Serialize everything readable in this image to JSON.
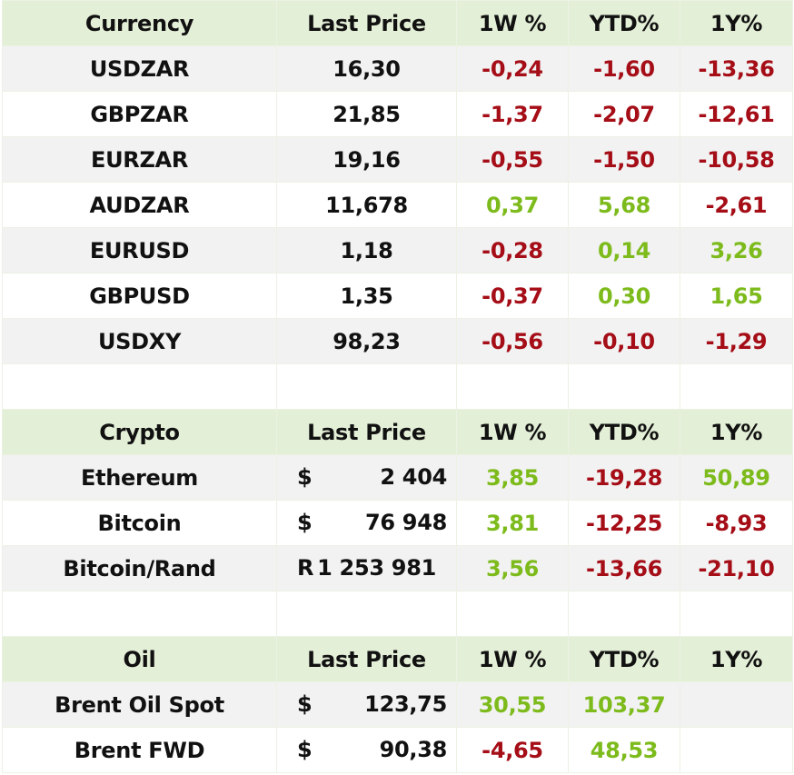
{
  "sections": [
    {
      "header": [
        "Currency",
        "Last Price",
        "1W %",
        "YTD%",
        "1Y%"
      ],
      "rows": [
        {
          "name": "USDZAR",
          "price": "16,30",
          "w": "-0,24",
          "ytd": "-1,60",
          "y": "-13,36"
        },
        {
          "name": "GBPZAR",
          "price": "21,85",
          "w": "-1,37",
          "ytd": "-2,07",
          "y": "-12,61"
        },
        {
          "name": "EURZAR",
          "price": "19,16",
          "w": "-0,55",
          "ytd": "-1,50",
          "y": "-10,58"
        },
        {
          "name": "AUDZAR",
          "price": "11,678",
          "w": "0,37",
          "ytd": "5,68",
          "y": "-2,61"
        },
        {
          "name": "EURUSD",
          "price": "1,18",
          "w": "-0,28",
          "ytd": "0,14",
          "y": "3,26"
        },
        {
          "name": "GBPUSD",
          "price": "1,35",
          "w": "-0,37",
          "ytd": "0,30",
          "y": "1,65"
        },
        {
          "name": "USDXY",
          "price": "98,23",
          "w": "-0,56",
          "ytd": "-0,10",
          "y": "-1,29"
        }
      ]
    },
    {
      "header": [
        "Crypto",
        "Last Price",
        "1W %",
        "YTD%",
        "1Y%"
      ],
      "rows": [
        {
          "name": "Ethereum",
          "currency": "$",
          "price": "2 404",
          "w": "3,85",
          "ytd": "-19,28",
          "y": "50,89"
        },
        {
          "name": "Bitcoin",
          "currency": "$",
          "price": "76 948",
          "w": "3,81",
          "ytd": "-12,25",
          "y": "-8,93"
        },
        {
          "name": "Bitcoin/Rand",
          "currency": "R",
          "price": "1 253 981",
          "w": "3,56",
          "ytd": "-13,66",
          "y": "-21,10"
        }
      ]
    },
    {
      "header": [
        "Oil",
        "Last Price",
        "1W %",
        "YTD%",
        "1Y%"
      ],
      "rows": [
        {
          "name": "Brent Oil Spot",
          "currency": "$",
          "price": "123,75",
          "w": "30,55",
          "ytd": "103,37",
          "y": ""
        },
        {
          "name": "Brent FWD",
          "currency": "$",
          "price": "90,38",
          "w": "-4,65",
          "ytd": "48,53",
          "y": ""
        }
      ]
    }
  ],
  "colors": {
    "negative": "#a50d17",
    "positive": "#7dbb1c",
    "header_bg": "#e4efd7",
    "stripe_bg": "#f2f2f2"
  }
}
